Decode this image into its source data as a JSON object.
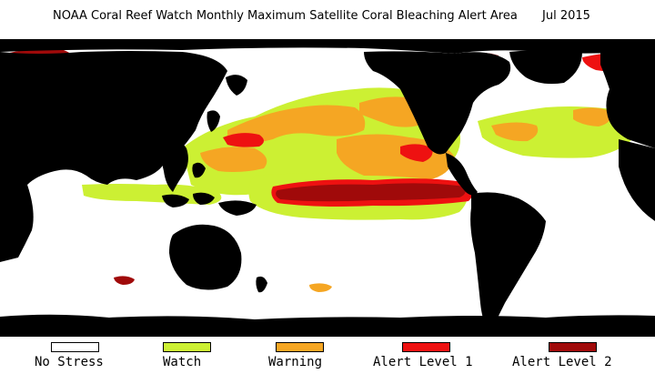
{
  "title": {
    "text": "NOAA Coral Reef Watch Monthly Maximum Satellite Coral Bleaching Alert Area",
    "date": "Jul 2015"
  },
  "map": {
    "land_color": "#000000",
    "ocean_default": "#ffffff",
    "categories": {
      "no_stress": "#ffffff",
      "watch": "#ccf033",
      "warning": "#f5a623",
      "alert1": "#ee1111",
      "alert2": "#a00a0a"
    }
  },
  "legend": [
    {
      "label": "No Stress",
      "color": "#ffffff"
    },
    {
      "label": "Watch",
      "color": "#ccf033"
    },
    {
      "label": "Warning",
      "color": "#f5a623"
    },
    {
      "label": "Alert Level 1",
      "color": "#ee1111"
    },
    {
      "label": "Alert Level 2",
      "color": "#a00a0a"
    }
  ]
}
